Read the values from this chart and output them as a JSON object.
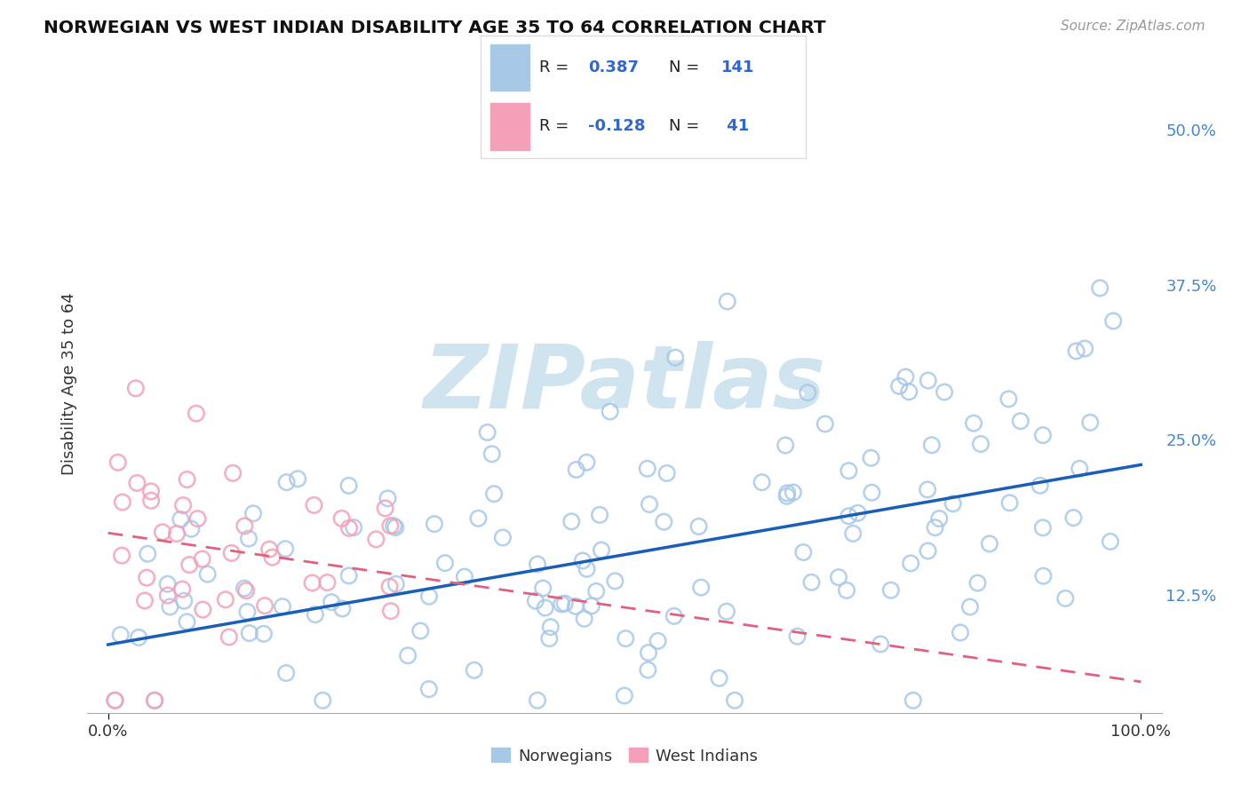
{
  "title": "NORWEGIAN VS WEST INDIAN DISABILITY AGE 35 TO 64 CORRELATION CHART",
  "source": "Source: ZipAtlas.com",
  "ylabel": "Disability Age 35 to 64",
  "xlim": [
    -0.02,
    1.02
  ],
  "ylim": [
    0.03,
    0.56
  ],
  "xtick_positions": [
    0.0,
    1.0
  ],
  "xticklabels": [
    "0.0%",
    "100.0%"
  ],
  "ytick_positions": [
    0.125,
    0.25,
    0.375,
    0.5
  ],
  "ytick_labels": [
    "12.5%",
    "25.0%",
    "37.5%",
    "50.0%"
  ],
  "norwegian_R": 0.387,
  "norwegian_N": 141,
  "west_indian_R": -0.128,
  "west_indian_N": 41,
  "norwegian_color": "#a8c8e8",
  "west_indian_color": "#f4a0b8",
  "norwegian_line_color": "#1a5eb8",
  "west_indian_line_color": "#e06080",
  "watermark_text": "ZIPatlas",
  "watermark_color": "#d0e4f0",
  "background_color": "#ffffff",
  "grid_color": "#cccccc",
  "title_color": "#111111",
  "source_color": "#999999",
  "axis_label_color": "#333333",
  "tick_label_color": "#4488cc",
  "legend_edge_color": "#dddddd",
  "legend_text_color_black": "#222222",
  "legend_text_color_blue": "#3366cc"
}
